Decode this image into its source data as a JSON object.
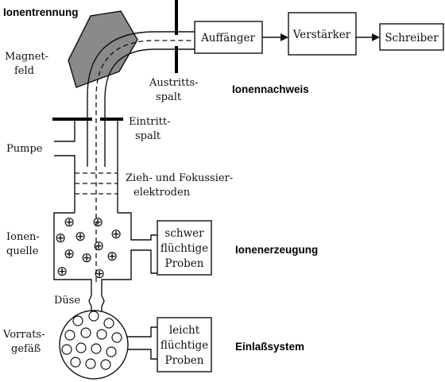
{
  "title": "Ionentrennung",
  "sections": {
    "ionennachweis": "Ionennachweis",
    "ionenerzeugung": "Ionenerzeugung",
    "einlasssystem": "Einlaßsystem"
  },
  "labels": {
    "magnetfeld_1": "Magnet-",
    "magnetfeld_2": "feld",
    "austritt_1": "Austritts-",
    "austritt_2": "spalt",
    "eintritt_1": "Eintritt-",
    "eintritt_2": "spalt",
    "pumpe": "Pumpe",
    "elektroden_1": "Zieh- und Fokussier-",
    "elektroden_2": "elektroden",
    "ionenquelle_1": "Ionen-",
    "ionenquelle_2": "quelle",
    "duese": "Düse",
    "vorrat_1": "Vorrats-",
    "vorrat_2": "gefäß"
  },
  "boxes": {
    "auffaenger": "Auffänger",
    "verstaerker": "Verstärker",
    "schreiber": "Schreiber",
    "schwer_1": "schwer",
    "schwer_2": "flüchtige",
    "schwer_3": "Proben",
    "leicht_1": "leicht",
    "leicht_2": "flüchtige",
    "leicht_3": "Proben"
  },
  "ion_symbol": "⊕",
  "colors": {
    "magnet": "#8a8a8a",
    "line": "#111111"
  }
}
